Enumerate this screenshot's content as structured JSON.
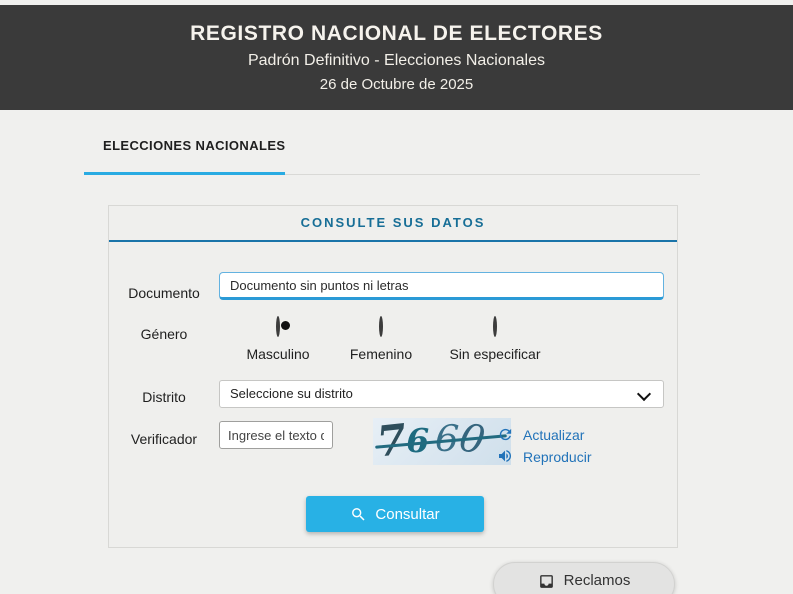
{
  "header": {
    "title": "REGISTRO NACIONAL DE ELECTORES",
    "subtitle": "Padrón Definitivo - Elecciones Nacionales",
    "date": "26 de Octubre de 2025"
  },
  "tabs": [
    {
      "label": "ELECCIONES NACIONALES",
      "active": true
    }
  ],
  "panel": {
    "title": "CONSULTE SUS DATOS"
  },
  "form": {
    "documento": {
      "label": "Documento",
      "placeholder": "Documento sin puntos ni letras"
    },
    "genero": {
      "label": "Género",
      "options": [
        {
          "label": "Masculino",
          "selected": true
        },
        {
          "label": "Femenino",
          "selected": false
        },
        {
          "label": "Sin especificar",
          "selected": false
        }
      ]
    },
    "distrito": {
      "label": "Distrito",
      "value": "Seleccione su distrito"
    },
    "verificador": {
      "label": "Verificador",
      "placeholder": "Ingrese el texto de la imagen",
      "captcha_text": "7660",
      "actualizar_label": "Actualizar",
      "reproducir_label": "Reproducir"
    },
    "submit_label": "Consultar"
  },
  "footer": {
    "reclamos_label": "Reclamos"
  },
  "icons": {
    "search": "magnifier-glyph",
    "refresh": "circular-arrow-glyph",
    "speaker": "volume-up-glyph",
    "inbox": "inbox-tray-glyph",
    "chevron": "chevron-down-shape"
  },
  "colors": {
    "header_bg": "#3a3a3a",
    "page_bg": "#f0f0ee",
    "tab_accent": "#29abe2",
    "panel_title": "#176e96",
    "panel_header_border": "#1a74a9",
    "input_accent_border": "#2a9ad6",
    "link": "#2273b9",
    "button_bg": "#28b1e5",
    "captcha_ink": "#1d6b80",
    "captcha_bg": "#d9e6f0"
  }
}
